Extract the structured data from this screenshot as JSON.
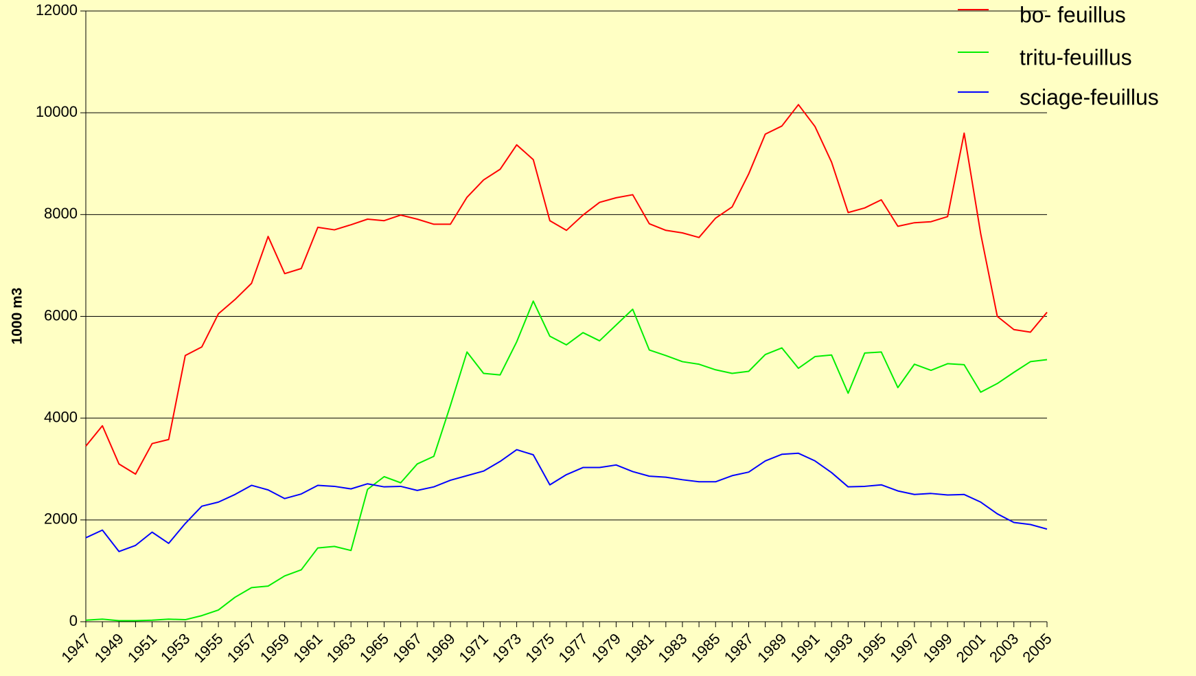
{
  "chart_data": {
    "type": "line",
    "ylabel": "1000 m3",
    "categories": [
      "1947",
      null,
      "1949",
      null,
      "1951",
      null,
      "1953",
      null,
      "1955",
      null,
      "1957",
      null,
      "1959",
      null,
      "1961",
      null,
      "1963",
      null,
      "1965",
      null,
      "1967",
      null,
      "1969",
      null,
      "1971",
      null,
      "1973",
      null,
      "1975",
      null,
      "1977",
      null,
      "1979",
      null,
      "1981",
      null,
      "1983",
      null,
      "1985",
      null,
      "1987",
      null,
      "1989",
      null,
      "1991",
      null,
      "1993",
      null,
      "1995",
      null,
      "1997",
      null,
      "1999",
      null,
      "2001",
      null,
      "2003",
      null,
      "2005"
    ],
    "series": [
      {
        "name": "bo- feuillus",
        "color": "#ff0000",
        "values": [
          3450,
          3850,
          3100,
          2900,
          3500,
          3580,
          5230,
          5400,
          6050,
          6330,
          6650,
          7570,
          6840,
          6940,
          7750,
          7700,
          7800,
          7910,
          7880,
          7990,
          7910,
          7810,
          7810,
          8340,
          8680,
          8890,
          9370,
          9080,
          7880,
          7690,
          7990,
          8240,
          8330,
          8390,
          7820,
          7690,
          7640,
          7550,
          7930,
          8150,
          8800,
          9580,
          9740,
          10160,
          9730,
          9030,
          8040,
          8130,
          8290,
          7770,
          7840,
          7860,
          7960,
          9600,
          7620,
          6000,
          5740,
          5690,
          6080
        ]
      },
      {
        "name": "tritu-feuillus",
        "color": "#00ee00",
        "values": [
          30,
          50,
          20,
          20,
          30,
          50,
          40,
          120,
          230,
          480,
          670,
          700,
          900,
          1020,
          1450,
          1480,
          1400,
          2600,
          2850,
          2730,
          3100,
          3250,
          4250,
          5300,
          4880,
          4850,
          5500,
          6300,
          5610,
          5440,
          5680,
          5520,
          5830,
          6140,
          5340,
          5230,
          5110,
          5060,
          4950,
          4880,
          4920,
          5250,
          5380,
          4980,
          5210,
          5240,
          4490,
          5280,
          5300,
          4600,
          5060,
          4940,
          5070,
          5050,
          4510,
          4680,
          4900,
          5110,
          5150
        ]
      },
      {
        "name": "sciage-feuillus",
        "color": "#0000ff",
        "values": [
          1650,
          1800,
          1380,
          1500,
          1760,
          1540,
          1930,
          2270,
          2350,
          2500,
          2680,
          2590,
          2420,
          2510,
          2680,
          2660,
          2610,
          2710,
          2650,
          2660,
          2580,
          2650,
          2780,
          2870,
          2960,
          3150,
          3380,
          3280,
          2690,
          2890,
          3030,
          3030,
          3080,
          2950,
          2860,
          2840,
          2790,
          2750,
          2750,
          2870,
          2940,
          3160,
          3290,
          3310,
          3160,
          2930,
          2650,
          2660,
          2690,
          2570,
          2500,
          2520,
          2490,
          2500,
          2350,
          2120,
          1950,
          1910,
          1820
        ]
      }
    ],
    "ylim": [
      0,
      12000
    ],
    "yticks": [
      0,
      2000,
      4000,
      6000,
      8000,
      10000,
      12000
    ],
    "grid": true,
    "legend": "upper right"
  }
}
